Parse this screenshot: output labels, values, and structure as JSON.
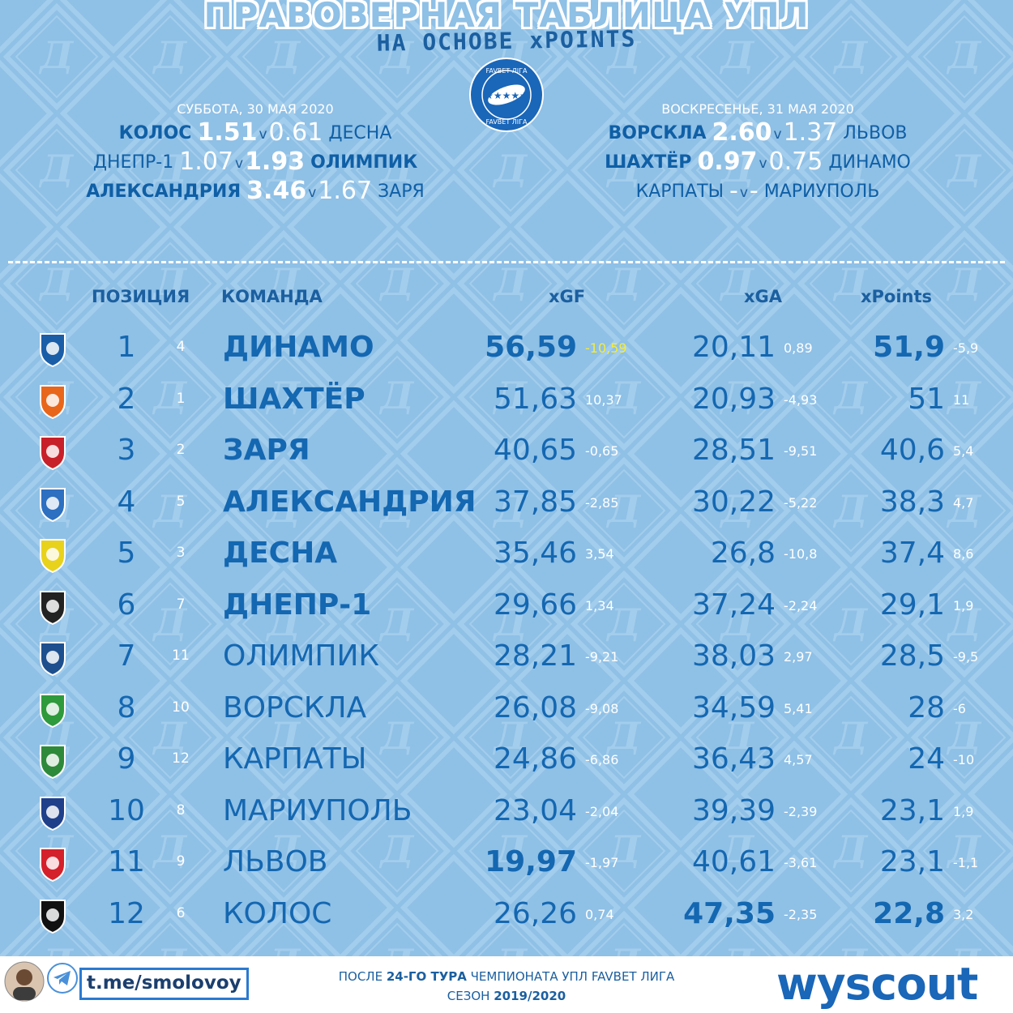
{
  "title": "ПРАВОВЕРНАЯ ТАБЛИЦА УПЛ",
  "subtitle": "НА ОСНОВЕ xPOINTS",
  "league_logo_text": "FAVBET ЛІГА",
  "days": [
    {
      "label": "СУББОТА, 30 МАЯ 2020",
      "matches": [
        {
          "home": "КОЛОС",
          "home_xg": "1.51",
          "v": "v",
          "away_xg": "0.61",
          "away": "ДЕСНА",
          "home_bold": true,
          "away_bold": false
        },
        {
          "home": "ДНЕПР-1",
          "home_xg": "1.07",
          "v": "v",
          "away_xg": "1.93",
          "away": "ОЛИМПИК",
          "home_bold": false,
          "away_bold": true
        },
        {
          "home": "АЛЕКСАНДРИЯ",
          "home_xg": "3.46",
          "v": "v",
          "away_xg": "1.67",
          "away": "ЗАРЯ",
          "home_bold": true,
          "away_bold": false
        }
      ]
    },
    {
      "label": "ВОСКРЕСЕНЬЕ, 31 МАЯ 2020",
      "matches": [
        {
          "home": "ВОРСКЛА",
          "home_xg": "2.60",
          "v": "v",
          "away_xg": "1.37",
          "away": "ЛЬВОВ",
          "home_bold": true,
          "away_bold": false
        },
        {
          "home": "ШАХТЁР",
          "home_xg": "0.97",
          "v": "v",
          "away_xg": "0.75",
          "away": "ДИНАМО",
          "home_bold": true,
          "away_bold": false
        },
        {
          "home": "КАРПАТЫ",
          "home_xg": "-",
          "v": "v",
          "away_xg": "-",
          "away": "МАРИУПОЛЬ",
          "home_bold": false,
          "away_bold": false
        }
      ]
    }
  ],
  "headers": {
    "position": "ПОЗИЦИЯ",
    "team": "КОМАНДА",
    "xgf": "xGF",
    "xga": "xGA",
    "xpoints": "xPoints"
  },
  "rows": [
    {
      "pos": "1",
      "prev": "4",
      "team": "ДИНАМО",
      "xgf": "56,59",
      "xgf_d": "-10,59",
      "xga": "20,11",
      "xga_d": "0,89",
      "xp": "51,9",
      "xp_d": "-5,9",
      "bold_team": true,
      "bold_xgf": true,
      "bold_xga": false,
      "bold_xp": true,
      "yellow_xgf_d": true,
      "badge_color": "#1a5ea8"
    },
    {
      "pos": "2",
      "prev": "1",
      "team": "ШАХТЁР",
      "xgf": "51,63",
      "xgf_d": "10,37",
      "xga": "20,93",
      "xga_d": "-4,93",
      "xp": "51",
      "xp_d": "11",
      "bold_team": true,
      "bold_xgf": false,
      "bold_xga": false,
      "bold_xp": false,
      "yellow_xgf_d": false,
      "badge_color": "#e8661c"
    },
    {
      "pos": "3",
      "prev": "2",
      "team": "ЗАРЯ",
      "xgf": "40,65",
      "xgf_d": "-0,65",
      "xga": "28,51",
      "xga_d": "-9,51",
      "xp": "40,6",
      "xp_d": "5,4",
      "bold_team": true,
      "bold_xgf": false,
      "bold_xga": false,
      "bold_xp": false,
      "yellow_xgf_d": false,
      "badge_color": "#c8202a"
    },
    {
      "pos": "4",
      "prev": "5",
      "team": "АЛЕКСАНДРИЯ",
      "xgf": "37,85",
      "xgf_d": "-2,85",
      "xga": "30,22",
      "xga_d": "-5,22",
      "xp": "38,3",
      "xp_d": "4,7",
      "bold_team": true,
      "bold_xgf": false,
      "bold_xga": false,
      "bold_xp": false,
      "yellow_xgf_d": false,
      "badge_color": "#2d6fc0"
    },
    {
      "pos": "5",
      "prev": "3",
      "team": "ДЕСНА",
      "xgf": "35,46",
      "xgf_d": "3,54",
      "xga": "26,8",
      "xga_d": "-10,8",
      "xp": "37,4",
      "xp_d": "8,6",
      "bold_team": true,
      "bold_xgf": false,
      "bold_xga": false,
      "bold_xp": false,
      "yellow_xgf_d": false,
      "badge_color": "#e8d21c"
    },
    {
      "pos": "6",
      "prev": "7",
      "team": "ДНЕПР-1",
      "xgf": "29,66",
      "xgf_d": "1,34",
      "xga": "37,24",
      "xga_d": "-2,24",
      "xp": "29,1",
      "xp_d": "1,9",
      "bold_team": true,
      "bold_xgf": false,
      "bold_xga": false,
      "bold_xp": false,
      "yellow_xgf_d": false,
      "badge_color": "#222222"
    },
    {
      "pos": "7",
      "prev": "11",
      "team": "ОЛИМПИК",
      "xgf": "28,21",
      "xgf_d": "-9,21",
      "xga": "38,03",
      "xga_d": "2,97",
      "xp": "28,5",
      "xp_d": "-9,5",
      "bold_team": false,
      "bold_xgf": false,
      "bold_xga": false,
      "bold_xp": false,
      "yellow_xgf_d": false,
      "badge_color": "#1d4f8e"
    },
    {
      "pos": "8",
      "prev": "10",
      "team": "ВОРСКЛА",
      "xgf": "26,08",
      "xgf_d": "-9,08",
      "xga": "34,59",
      "xga_d": "5,41",
      "xp": "28",
      "xp_d": "-6",
      "bold_team": false,
      "bold_xgf": false,
      "bold_xga": false,
      "bold_xp": false,
      "yellow_xgf_d": false,
      "badge_color": "#2e9a3c"
    },
    {
      "pos": "9",
      "prev": "12",
      "team": "КАРПАТЫ",
      "xgf": "24,86",
      "xgf_d": "-6,86",
      "xga": "36,43",
      "xga_d": "4,57",
      "xp": "24",
      "xp_d": "-10",
      "bold_team": false,
      "bold_xgf": false,
      "bold_xga": false,
      "bold_xp": false,
      "yellow_xgf_d": false,
      "badge_color": "#2e8a3a"
    },
    {
      "pos": "10",
      "prev": "8",
      "team": "МАРИУПОЛЬ",
      "xgf": "23,04",
      "xgf_d": "-2,04",
      "xga": "39,39",
      "xga_d": "-2,39",
      "xp": "23,1",
      "xp_d": "1,9",
      "bold_team": false,
      "bold_xgf": false,
      "bold_xga": false,
      "bold_xp": false,
      "yellow_xgf_d": false,
      "badge_color": "#1f3f8a"
    },
    {
      "pos": "11",
      "prev": "9",
      "team": "ЛЬВОВ",
      "xgf": "19,97",
      "xgf_d": "-1,97",
      "xga": "40,61",
      "xga_d": "-3,61",
      "xp": "23,1",
      "xp_d": "-1,1",
      "bold_team": false,
      "bold_xgf": true,
      "bold_xga": false,
      "bold_xp": false,
      "yellow_xgf_d": false,
      "badge_color": "#d4202a"
    },
    {
      "pos": "12",
      "prev": "6",
      "team": "КОЛОС",
      "xgf": "26,26",
      "xgf_d": "0,74",
      "xga": "47,35",
      "xga_d": "-2,35",
      "xp": "22,8",
      "xp_d": "3,2",
      "bold_team": false,
      "bold_xgf": false,
      "bold_xga": true,
      "bold_xp": true,
      "yellow_xgf_d": false,
      "badge_color": "#111111"
    }
  ],
  "footer": {
    "telegram": "t.me/smolovoy",
    "line1_pre": "ПОСЛЕ ",
    "line1_bold": "24-ГО ТУРА",
    "line1_post": " ЧЕМПИОНАТА УПЛ FAVBET ЛИГА",
    "line2_pre": "СЕЗОН ",
    "line2_bold": "2019/2020",
    "brand": "wyscout"
  }
}
